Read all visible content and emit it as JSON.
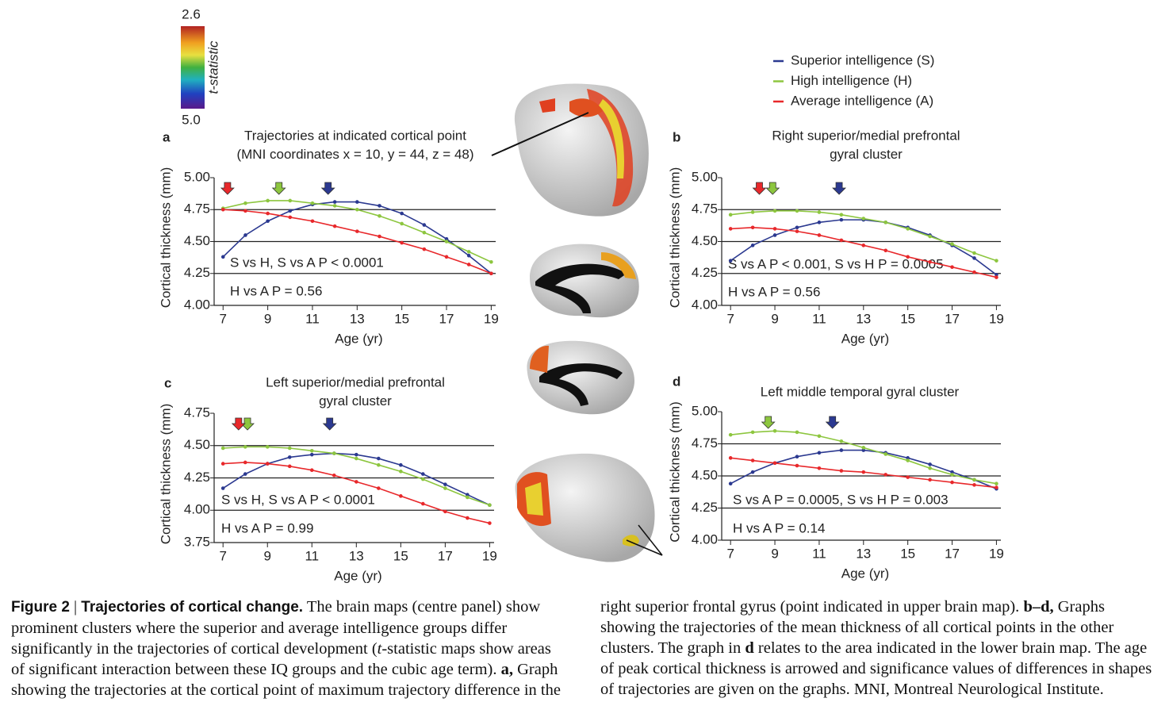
{
  "colorbar": {
    "top_label": "2.6",
    "bottom_label": "5.0",
    "label": "t-statistic"
  },
  "chart_data": [
    {
      "type": "line",
      "panel": "a",
      "title": [
        "Trajectories at indicated cortical point",
        "(MNI coordinates x = 10, y = 44, z = 48)"
      ],
      "xlabel": "Age (yr)",
      "ylabel": "Cortical thickness (mm)",
      "x": [
        7,
        8,
        9,
        10,
        11,
        12,
        13,
        14,
        15,
        16,
        17,
        18,
        19
      ],
      "xlim": [
        6.6,
        19.2
      ],
      "xticks": [
        7,
        9,
        11,
        13,
        15,
        17,
        19
      ],
      "ylim": [
        4.0,
        5.0
      ],
      "yticks": [
        {
          "value": 4.0,
          "label": "4.00"
        },
        {
          "value": 4.25,
          "label": "4.25"
        },
        {
          "value": 4.5,
          "label": "4.50"
        },
        {
          "value": 4.75,
          "label": "4.75"
        },
        {
          "value": 5.0,
          "label": "5.00"
        }
      ],
      "grid": true,
      "annotations": [
        "S vs H, S vs A P < 0.0001",
        "H vs A P = 0.56"
      ],
      "series": [
        {
          "name": "Superior intelligence (S)",
          "color": "#2b3990",
          "peak": 11.7,
          "values": [
            4.38,
            4.55,
            4.66,
            4.74,
            4.79,
            4.81,
            4.81,
            4.78,
            4.72,
            4.63,
            4.52,
            4.39,
            4.25
          ]
        },
        {
          "name": "High intelligence (H)",
          "color": "#8dc63f",
          "peak": 9.5,
          "values": [
            4.76,
            4.8,
            4.82,
            4.82,
            4.8,
            4.78,
            4.75,
            4.7,
            4.64,
            4.57,
            4.5,
            4.42,
            4.34
          ]
        },
        {
          "name": "Average intelligence (A)",
          "color": "#e8282b",
          "peak": 7.2,
          "values": [
            4.75,
            4.74,
            4.72,
            4.69,
            4.66,
            4.62,
            4.58,
            4.54,
            4.49,
            4.44,
            4.38,
            4.32,
            4.25
          ]
        }
      ]
    },
    {
      "type": "line",
      "panel": "b",
      "title": [
        "Right superior/medial prefrontal",
        "gyral cluster"
      ],
      "xlabel": "Age (yr)",
      "ylabel": "Cortical thickness (mm)",
      "x": [
        7,
        8,
        9,
        10,
        11,
        12,
        13,
        14,
        15,
        16,
        17,
        18,
        19
      ],
      "xlim": [
        6.6,
        19.2
      ],
      "xticks": [
        7,
        9,
        11,
        13,
        15,
        17,
        19
      ],
      "ylim": [
        4.0,
        5.0
      ],
      "yticks": [
        {
          "value": 4.0,
          "label": "4.00"
        },
        {
          "value": 4.25,
          "label": "4.25"
        },
        {
          "value": 4.5,
          "label": "4.50"
        },
        {
          "value": 4.75,
          "label": "4.75"
        },
        {
          "value": 5.0,
          "label": "5.00"
        }
      ],
      "grid": true,
      "annotations": [
        "S vs A P < 0.001, S vs H P = 0.0005",
        "H vs A P = 0.56"
      ],
      "series": [
        {
          "color": "#2b3990",
          "peak": 11.9,
          "values": [
            4.35,
            4.47,
            4.55,
            4.61,
            4.65,
            4.67,
            4.67,
            4.65,
            4.61,
            4.55,
            4.47,
            4.37,
            4.24
          ]
        },
        {
          "color": "#8dc63f",
          "peak": 8.9,
          "values": [
            4.71,
            4.73,
            4.74,
            4.74,
            4.73,
            4.71,
            4.68,
            4.65,
            4.6,
            4.54,
            4.48,
            4.41,
            4.35
          ]
        },
        {
          "color": "#e8282b",
          "peak": 8.3,
          "values": [
            4.6,
            4.61,
            4.6,
            4.58,
            4.55,
            4.51,
            4.47,
            4.43,
            4.38,
            4.34,
            4.3,
            4.26,
            4.22
          ]
        }
      ]
    },
    {
      "type": "line",
      "panel": "c",
      "title": [
        "Left superior/medial prefrontal",
        "gyral cluster"
      ],
      "xlabel": "Age (yr)",
      "ylabel": "Cortical thickness (mm)",
      "x": [
        7,
        8,
        9,
        10,
        11,
        12,
        13,
        14,
        15,
        16,
        17,
        18,
        19
      ],
      "xlim": [
        6.6,
        19.2
      ],
      "xticks": [
        7,
        9,
        11,
        13,
        15,
        17,
        19
      ],
      "ylim": [
        3.75,
        4.75
      ],
      "yticks": [
        {
          "value": 3.75,
          "label": "3.75"
        },
        {
          "value": 4.0,
          "label": "4.00"
        },
        {
          "value": 4.25,
          "label": "4.25"
        },
        {
          "value": 4.5,
          "label": "4.50"
        },
        {
          "value": 4.75,
          "label": "4.75"
        }
      ],
      "grid": true,
      "annotations": [
        "S vs H, S vs A P < 0.0001",
        "H vs A P = 0.99"
      ],
      "series": [
        {
          "color": "#2b3990",
          "peak": 11.8,
          "values": [
            4.17,
            4.28,
            4.36,
            4.41,
            4.43,
            4.44,
            4.43,
            4.4,
            4.35,
            4.28,
            4.2,
            4.12,
            4.04
          ]
        },
        {
          "color": "#8dc63f",
          "peak": 8.1,
          "values": [
            4.48,
            4.49,
            4.49,
            4.48,
            4.46,
            4.44,
            4.4,
            4.35,
            4.3,
            4.24,
            4.17,
            4.1,
            4.04
          ]
        },
        {
          "color": "#e8282b",
          "peak": 7.7,
          "values": [
            4.36,
            4.37,
            4.36,
            4.34,
            4.31,
            4.27,
            4.22,
            4.17,
            4.11,
            4.05,
            3.99,
            3.94,
            3.9
          ]
        }
      ]
    },
    {
      "type": "line",
      "panel": "d",
      "title": [
        "Left middle temporal gyral cluster"
      ],
      "xlabel": "Age (yr)",
      "ylabel": "Cortical thickness (mm)",
      "x": [
        7,
        8,
        9,
        10,
        11,
        12,
        13,
        14,
        15,
        16,
        17,
        18,
        19
      ],
      "xlim": [
        6.6,
        19.2
      ],
      "xticks": [
        7,
        9,
        11,
        13,
        15,
        17,
        19
      ],
      "ylim": [
        4.0,
        5.0
      ],
      "yticks": [
        {
          "value": 4.0,
          "label": "4.00"
        },
        {
          "value": 4.25,
          "label": "4.25"
        },
        {
          "value": 4.5,
          "label": "4.50"
        },
        {
          "value": 4.75,
          "label": "4.75"
        },
        {
          "value": 5.0,
          "label": "5.00"
        }
      ],
      "grid": true,
      "annotations": [
        "S vs A P = 0.0005, S vs H  P = 0.003",
        "H vs A P = 0.14"
      ],
      "series": [
        {
          "color": "#2b3990",
          "peak": 11.6,
          "values": [
            4.44,
            4.53,
            4.6,
            4.65,
            4.68,
            4.7,
            4.7,
            4.68,
            4.64,
            4.59,
            4.53,
            4.47,
            4.4
          ]
        },
        {
          "color": "#8dc63f",
          "peak": 8.7,
          "values": [
            4.82,
            4.84,
            4.85,
            4.84,
            4.81,
            4.77,
            4.72,
            4.67,
            4.62,
            4.56,
            4.51,
            4.47,
            4.44
          ]
        },
        {
          "color": "#e8282b",
          "values": [
            4.64,
            4.62,
            4.6,
            4.58,
            4.56,
            4.54,
            4.53,
            4.51,
            4.49,
            4.47,
            4.45,
            4.43,
            4.41
          ]
        }
      ]
    }
  ],
  "caption": {
    "label": "Figure 2",
    "separator": "|",
    "title": "Trajectories of cortical change.",
    "segments": [
      {
        "text": "The brain maps (centre panel) show prominent clusters where the superior and average intelligence groups differ significantly in the trajectories of cortical development (",
        "style": "normal"
      },
      {
        "text": "t",
        "style": "italic"
      },
      {
        "text": "-statistic maps show areas of significant interaction between these IQ groups and the cubic age term). ",
        "style": "normal"
      },
      {
        "text": "a,",
        "style": "bold"
      },
      {
        "text": " Graph showing the trajectories at the cortical point of maximum trajectory difference in the right superior frontal gyrus (point indicated in upper brain map). ",
        "style": "normal"
      },
      {
        "text": "b–d,",
        "style": "bold"
      },
      {
        "text": " Graphs showing the trajectories of the mean thickness of all cortical points in the other clusters. The graph in ",
        "style": "normal"
      },
      {
        "text": "d",
        "style": "bold"
      },
      {
        "text": " relates to the area indicated in the lower brain map. The age of peak cortical thickness is arrowed and significance values of differences in shapes of trajectories are given on the graphs. MNI, Montreal Neurological Institute.",
        "style": "normal"
      }
    ]
  }
}
